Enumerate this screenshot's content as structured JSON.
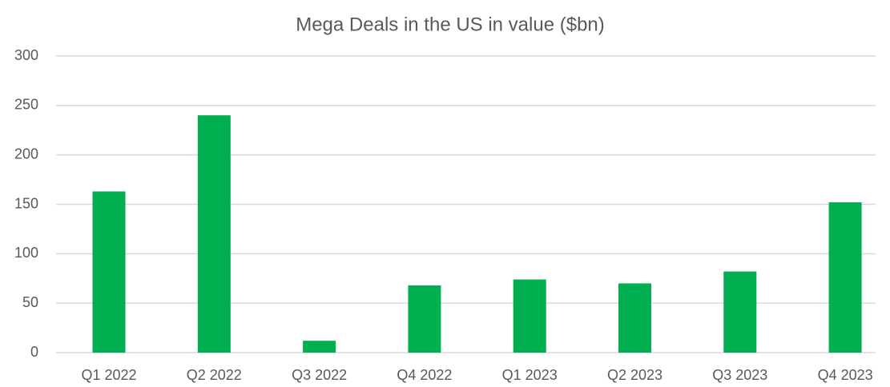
{
  "chart_data": {
    "type": "bar",
    "title": "Mega Deals in the US in value ($bn)",
    "categories": [
      "Q1 2022",
      "Q2 2022",
      "Q3 2022",
      "Q4 2022",
      "Q1 2023",
      "Q2 2023",
      "Q3 2023",
      "Q4 2023"
    ],
    "values": [
      163,
      240,
      12,
      68,
      74,
      70,
      82,
      152
    ],
    "color": "#00b050",
    "ylim": [
      0,
      300
    ],
    "yticks": [
      0,
      50,
      100,
      150,
      200,
      250,
      300
    ],
    "grid": true
  }
}
